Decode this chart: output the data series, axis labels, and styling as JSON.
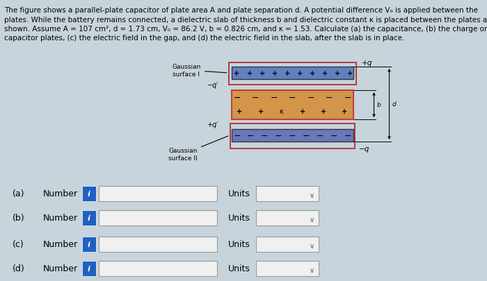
{
  "bg_color": "#c8d4dc",
  "text_color": "#000000",
  "title_lines": [
    "The figure shows a parallel-plate capacitor of plate area A and plate separation d. A potential difference V₀ is applied between the",
    "plates. While the battery remains connected, a dielectric slab of thickness b and dielectric constant κ is placed between the plates as",
    "shown. Assume A = 107 cm², d = 1.73 cm, V₀ = 86.2 V, b = 0.826 cm, and κ = 1.53. Calculate (a) the capacitance, (b) the charge on the",
    "capacitor plates, (c) the electric field in the gap, and (d) the electric field in the slab, after the slab is in place."
  ],
  "top_plate_color": "#6080c0",
  "bot_plate_color": "#6878b8",
  "dielectric_color": "#d4944a",
  "dielectric_edge_color": "#c04040",
  "gaussian_edge_color": "#aa2222",
  "labels": [
    "(a)",
    "(b)",
    "(c)",
    "(d)"
  ],
  "info_btn_color": "#2060c0",
  "input_box_color": "#f0f0f0",
  "units_box_color": "#f0f0f0"
}
